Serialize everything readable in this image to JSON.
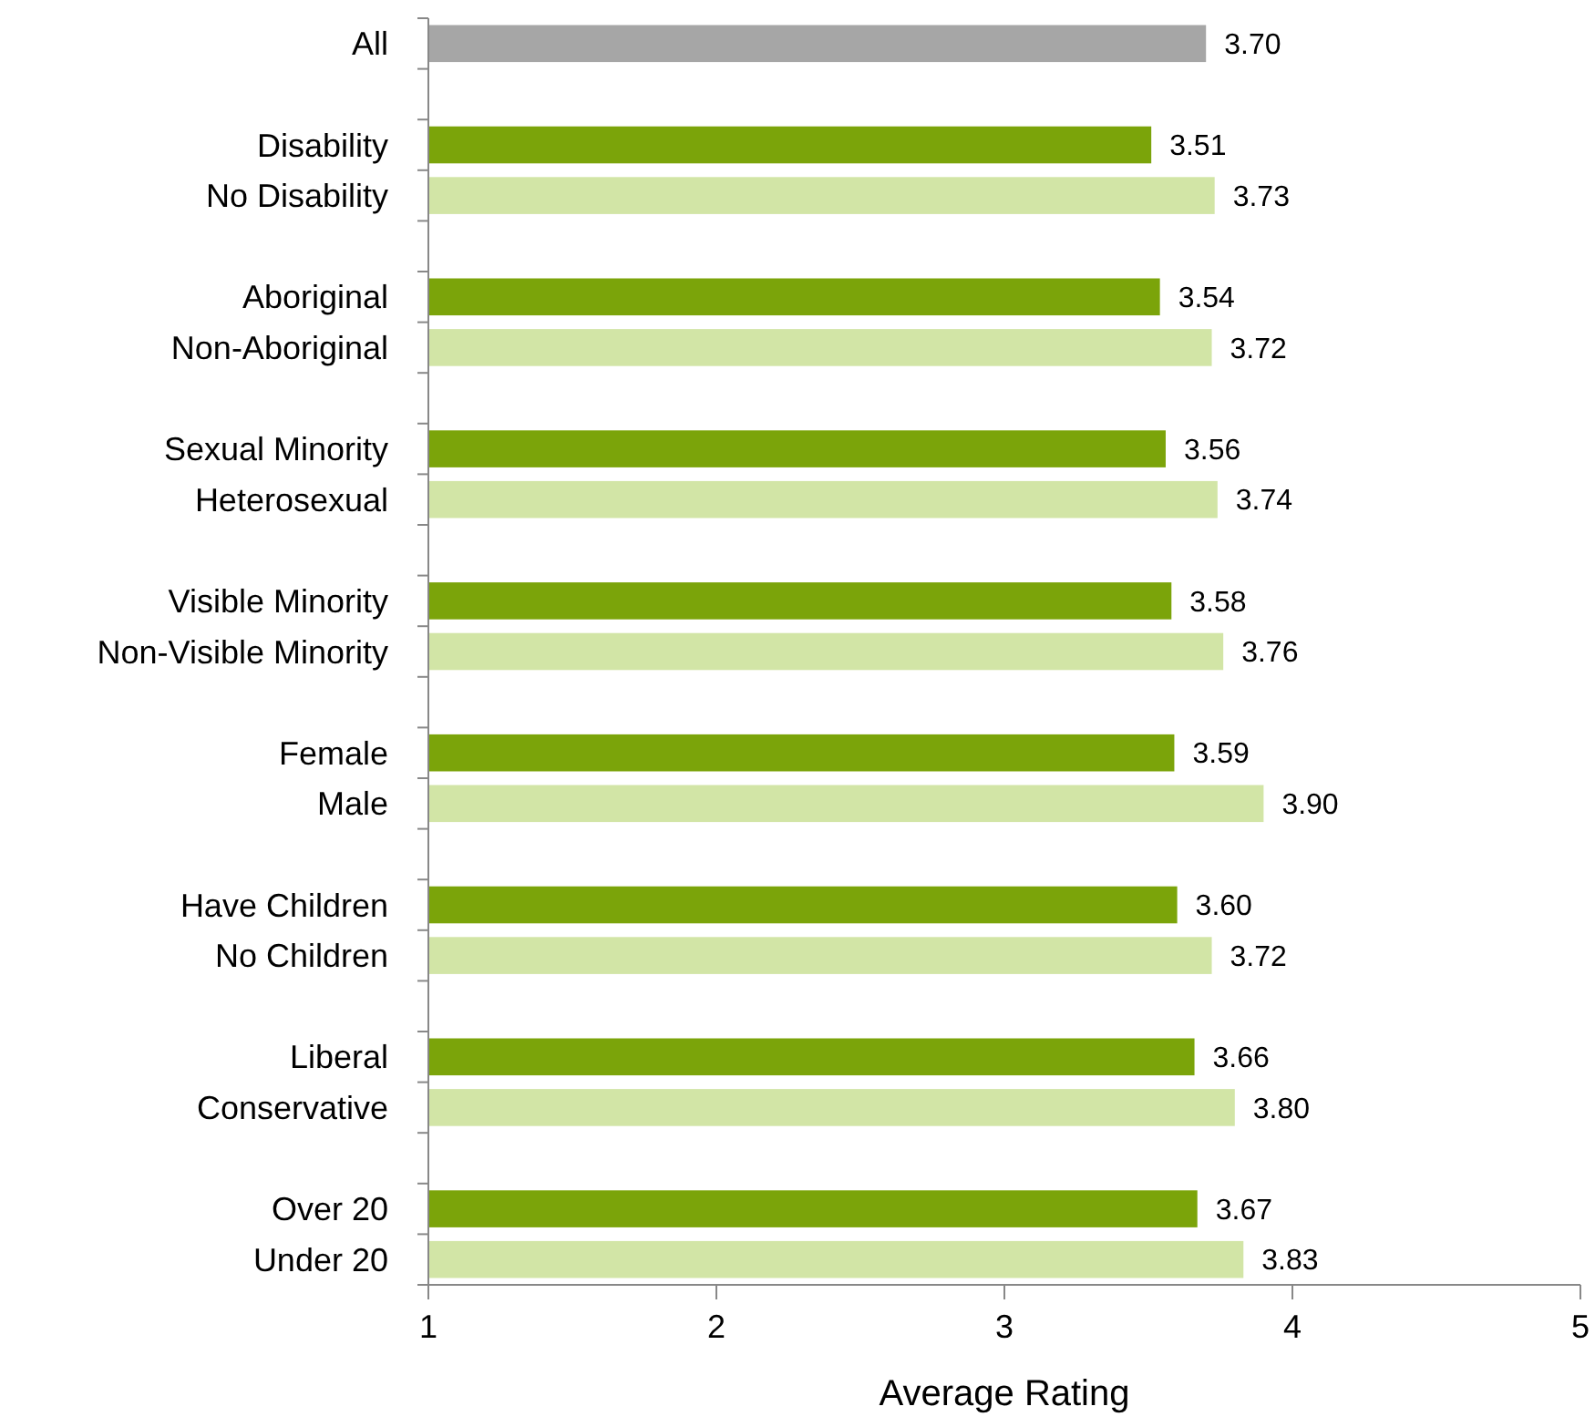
{
  "chart_data": {
    "type": "bar",
    "orientation": "horizontal",
    "xlabel": "Average Rating",
    "categories": [
      "All",
      null,
      "Disability",
      "No Disability",
      null,
      "Aboriginal",
      "Non-Aboriginal",
      null,
      "Sexual Minority",
      "Heterosexual",
      null,
      "Visible Minority",
      "Non-Visible Minority",
      null,
      "Female",
      "Male",
      null,
      "Have Children",
      "No Children",
      null,
      "Liberal",
      "Conservative",
      null,
      "Over 20",
      "Under 20"
    ],
    "values": [
      3.7,
      null,
      3.51,
      3.73,
      null,
      3.54,
      3.72,
      null,
      3.56,
      3.74,
      null,
      3.58,
      3.76,
      null,
      3.59,
      3.9,
      null,
      3.6,
      3.72,
      null,
      3.66,
      3.8,
      null,
      3.67,
      3.83
    ],
    "value_labels": [
      "3.70",
      null,
      "3.51",
      "3.73",
      null,
      "3.54",
      "3.72",
      null,
      "3.56",
      "3.74",
      null,
      "3.58",
      "3.76",
      null,
      "3.59",
      "3.90",
      null,
      "3.60",
      "3.72",
      null,
      "3.66",
      "3.80",
      null,
      "3.67",
      "3.83"
    ],
    "colors": [
      "#a6a6a6",
      null,
      "#7ba40a",
      "#d2e5a6",
      null,
      "#7ba40a",
      "#d2e5a6",
      null,
      "#7ba40a",
      "#d2e5a6",
      null,
      "#7ba40a",
      "#d2e5a6",
      null,
      "#7ba40a",
      "#d2e5a6",
      null,
      "#7ba40a",
      "#d2e5a6",
      null,
      "#7ba40a",
      "#d2e5a6",
      null,
      "#7ba40a",
      "#d2e5a6"
    ],
    "xlim": [
      1,
      5
    ],
    "xticks": [
      1,
      2,
      3,
      4,
      5
    ]
  }
}
